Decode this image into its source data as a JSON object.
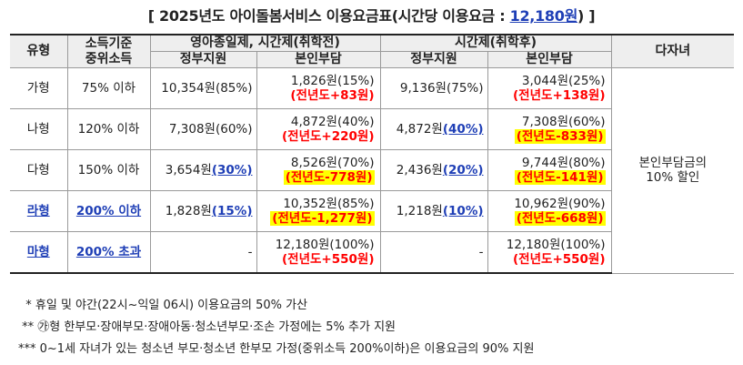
{
  "title": {
    "prefix": "[ ",
    "main": "2025년도 아이돌봄서비스 이용요금표(시간당 이용요금 : ",
    "fee": "12,180원",
    "suffix": ") ]"
  },
  "header": {
    "type": "유형",
    "income_line1": "소득기준",
    "income_line2": "중위소득",
    "group_infant": "영아종일제, 시간제(취학전)",
    "group_school": "시간제(취학후)",
    "multi_child": "다자녀",
    "gov_support": "정부지원",
    "self_pay": "본인부담"
  },
  "rows": [
    {
      "type": "가형",
      "income": "75% 이하",
      "infant_gov": "10,354원(85%)",
      "infant_gov_hl": "",
      "infant_self": "1,826원(15%)",
      "infant_diff": "(전년도+83원)",
      "infant_diff_style": "red",
      "school_gov": "9,136원(75%)",
      "school_gov_hl": "",
      "school_self": "3,044원(25%)",
      "school_diff": "(전년도+138원)",
      "school_diff_style": "red"
    },
    {
      "type": "나형",
      "income": "120% 이하",
      "infant_gov": "7,308원(60%)",
      "infant_gov_hl": "",
      "infant_self": "4,872원(40%)",
      "infant_diff": "(전년도+220원)",
      "infant_diff_style": "red",
      "school_gov": "4,872원",
      "school_gov_hl": "(40%)",
      "school_self": "7,308원(60%)",
      "school_diff": "(전년도-833원)",
      "school_diff_style": "hl"
    },
    {
      "type": "다형",
      "income": "150% 이하",
      "infant_gov": "3,654원",
      "infant_gov_hl": "(30%)",
      "infant_self": "8,526원(70%)",
      "infant_diff": "(전년도-778원)",
      "infant_diff_style": "hl",
      "school_gov": "2,436원",
      "school_gov_hl": "(20%)",
      "school_self": "9,744원(80%)",
      "school_diff": "(전년도-141원)",
      "school_diff_style": "hl"
    },
    {
      "type": "라형",
      "income": "200% 이하",
      "emph": true,
      "infant_gov": "1,828원",
      "infant_gov_hl": "(15%)",
      "infant_self": "10,352원(85%)",
      "infant_diff": "(전년도-1,277원)",
      "infant_diff_style": "hl",
      "school_gov": "1,218원",
      "school_gov_hl": "(10%)",
      "school_self": "10,962원(90%)",
      "school_diff": "(전년도-668원)",
      "school_diff_style": "hl"
    },
    {
      "type": "마형",
      "income": "200% 초과",
      "emph": true,
      "infant_gov": "-",
      "infant_gov_hl": "",
      "infant_self": "12,180원(100%)",
      "infant_diff": "(전년도+550원)",
      "infant_diff_style": "red",
      "school_gov": "-",
      "school_gov_hl": "",
      "school_self": "12,180원(100%)",
      "school_diff": "(전년도+550원)",
      "school_diff_style": "red"
    }
  ],
  "multi_child_text_line1": "본인부담금의",
  "multi_child_text_line2": "10% 할인",
  "notes": [
    "  * 휴일 및 야간(22시~익일 06시) 이용요금의 50% 가산",
    " ** ㉮형 한부모·장애부모·장애아동·청소년부모·조손 가정에는 5% 추가 지원",
    "*** 0~1세 자녀가 있는 청소년 부모·청소년 한부모 가정(중위소득 200%이하)은 이용요금의 90% 지원"
  ]
}
